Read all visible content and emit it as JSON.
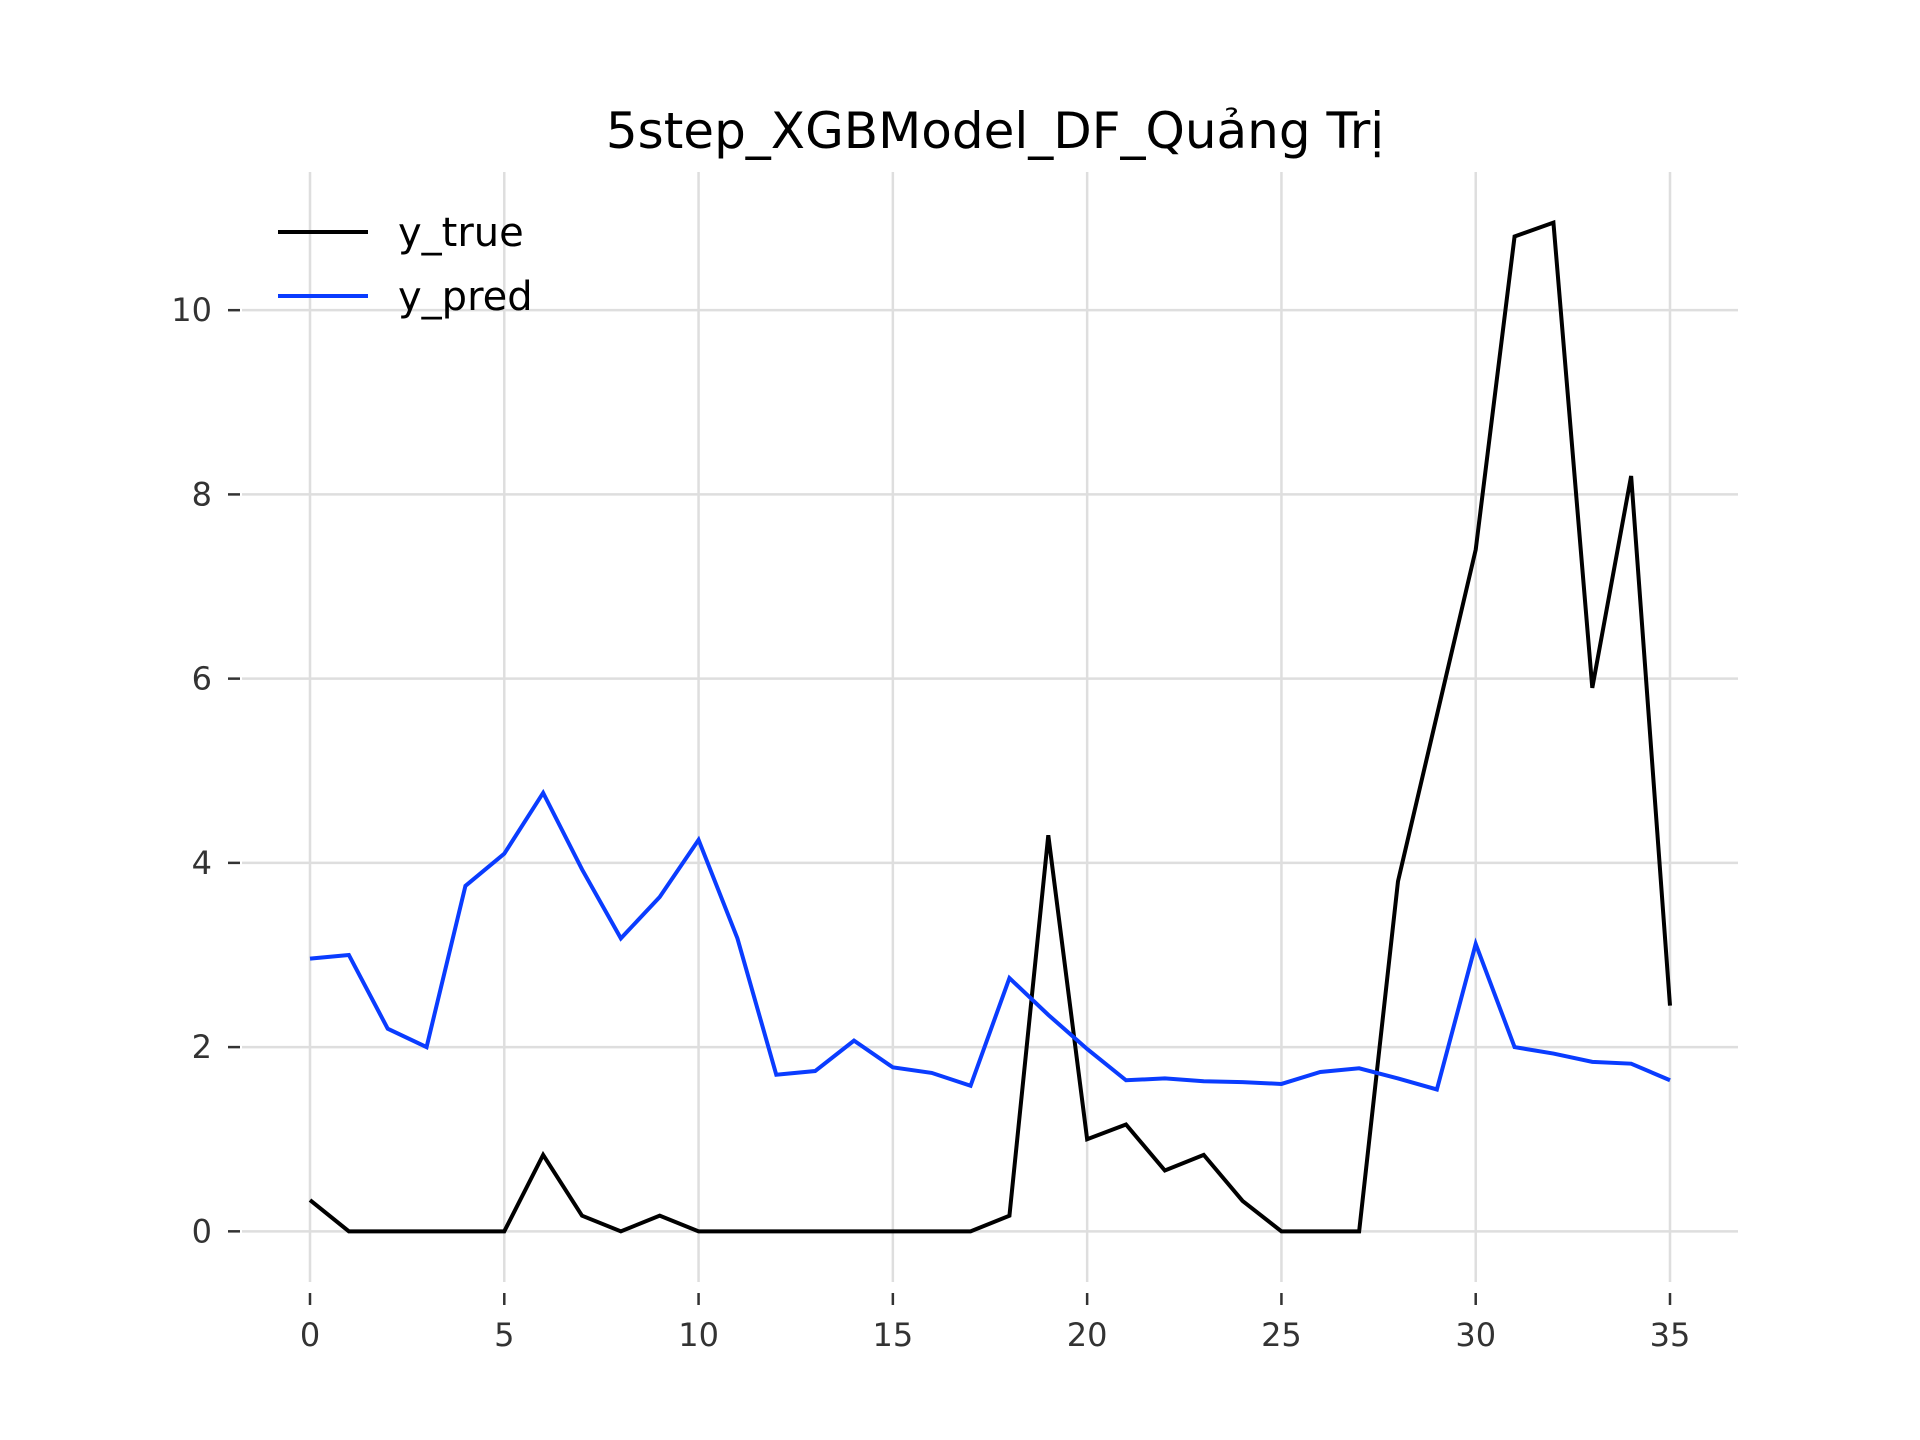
{
  "chart_data": {
    "type": "line",
    "title": "5step_XGBModel_DF_Quảng Trị",
    "xlabel": "",
    "ylabel": "",
    "xlim": [
      -1.75,
      36.75
    ],
    "ylim": [
      -0.55,
      11.5
    ],
    "x_ticks": [
      0,
      5,
      10,
      15,
      20,
      25,
      30,
      35
    ],
    "y_ticks": [
      0,
      2,
      4,
      6,
      8,
      10
    ],
    "x_tick_labels": [
      "0",
      "5",
      "10",
      "15",
      "20",
      "25",
      "30",
      "35"
    ],
    "y_tick_labels": [
      "0",
      "2",
      "4",
      "6",
      "8",
      "10"
    ],
    "grid": true,
    "legend": {
      "position": "top-left"
    },
    "x": [
      0,
      1,
      2,
      3,
      4,
      5,
      6,
      7,
      8,
      9,
      10,
      11,
      12,
      13,
      14,
      15,
      16,
      17,
      18,
      19,
      20,
      21,
      22,
      23,
      24,
      25,
      26,
      27,
      28,
      29,
      30,
      31,
      32,
      33,
      34,
      35
    ],
    "series": [
      {
        "name": "y_true",
        "color": "#000000",
        "values": [
          0.34,
          0,
          0,
          0,
          0,
          0,
          0.83,
          0.17,
          0,
          0.17,
          0,
          0,
          0,
          0,
          0,
          0,
          0,
          0,
          0.17,
          4.3,
          1.0,
          1.16,
          0.66,
          0.83,
          0.33,
          0,
          0,
          0,
          3.8,
          5.6,
          7.4,
          10.8,
          10.95,
          5.9,
          8.2,
          2.45
        ]
      },
      {
        "name": "y_pred",
        "color": "#0a3cff",
        "values": [
          2.96,
          3.0,
          2.2,
          2.0,
          3.75,
          4.1,
          4.76,
          3.93,
          3.18,
          3.63,
          4.25,
          3.18,
          1.7,
          1.74,
          2.07,
          1.78,
          1.72,
          1.58,
          2.75,
          2.35,
          1.98,
          1.64,
          1.66,
          1.63,
          1.62,
          1.6,
          1.73,
          1.77,
          1.66,
          1.54,
          3.12,
          2.0,
          1.93,
          1.84,
          1.82,
          1.64
        ]
      }
    ]
  }
}
